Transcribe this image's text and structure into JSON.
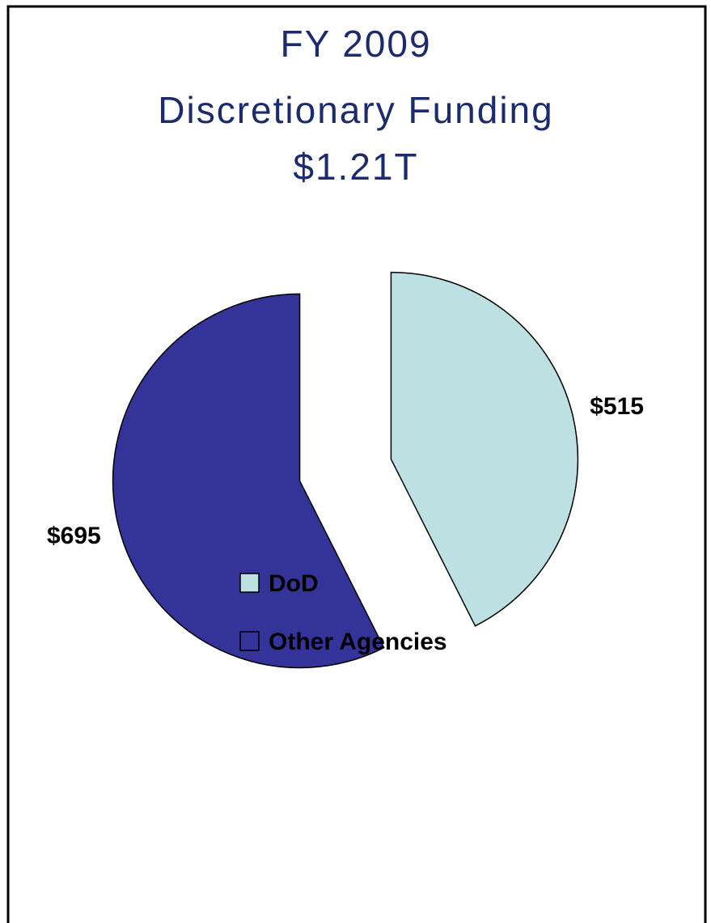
{
  "chart_data": {
    "type": "pie",
    "title": [
      "FY 2009",
      "Discretionary Funding",
      "$1.21T"
    ],
    "categories": [
      "DoD",
      "Other Agencies"
    ],
    "values": [
      515,
      695
    ],
    "value_labels": [
      "$515",
      "$695"
    ],
    "colors": [
      "#bde0e2",
      "#333399"
    ],
    "legend": "bottom"
  }
}
